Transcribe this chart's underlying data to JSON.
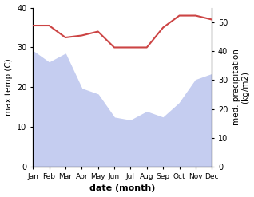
{
  "months": [
    "Jan",
    "Feb",
    "Mar",
    "Apr",
    "May",
    "Jun",
    "Jul",
    "Aug",
    "Sep",
    "Oct",
    "Nov",
    "Dec"
  ],
  "temperature": [
    35.5,
    35.5,
    32.5,
    33,
    34,
    30,
    30,
    30,
    35,
    38,
    38,
    37
  ],
  "precipitation": [
    40,
    36,
    39,
    27,
    25,
    17,
    16,
    19,
    17,
    22,
    30,
    32
  ],
  "temp_color": "#cc4444",
  "precip_fill_color": "#c5cdf0",
  "xlabel": "date (month)",
  "ylabel_left": "max temp (C)",
  "ylabel_right": "med. precipitation\n(kg/m2)",
  "ylim_left": [
    0,
    40
  ],
  "ylim_right": [
    0,
    55
  ],
  "yticks_left": [
    0,
    10,
    20,
    30,
    40
  ],
  "yticks_right": [
    0,
    10,
    20,
    30,
    40,
    50
  ],
  "bg_color": "#ffffff"
}
